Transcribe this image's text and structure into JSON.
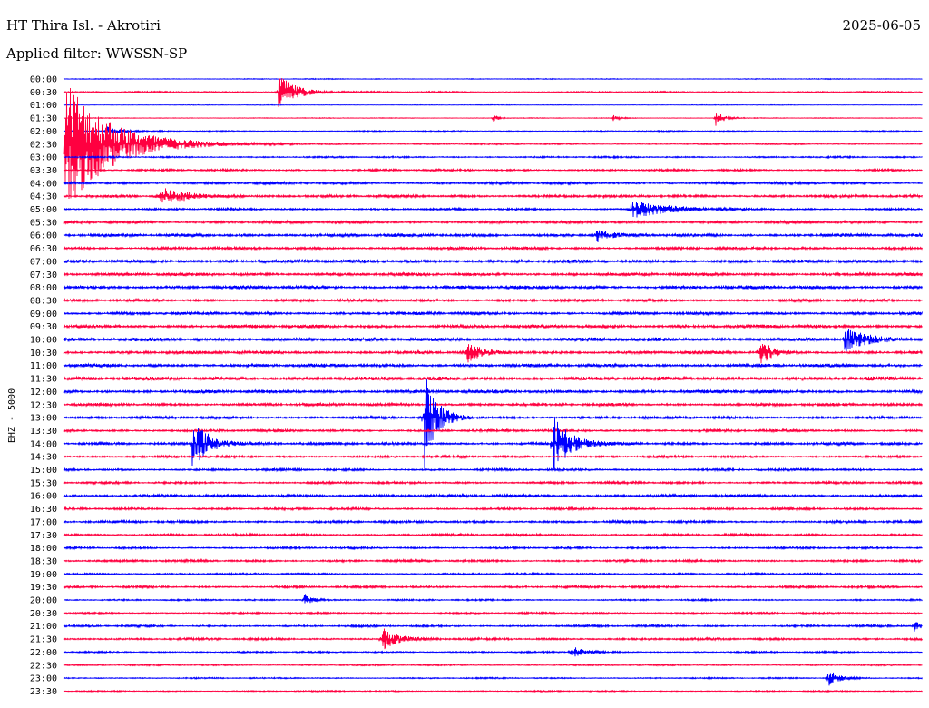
{
  "header": {
    "station": "HT Thira Isl. - Akrotiri",
    "date": "2025-06-05",
    "filter": "Applied filter: WWSSN-SP"
  },
  "chart_data": {
    "type": "line",
    "title": "HT Thira Isl. - Akrotiri",
    "ylabel": "EHZ - 5000",
    "colors": [
      "#0000ff",
      "#ff0040"
    ],
    "row_labels": [
      "00:00",
      "00:30",
      "01:00",
      "01:30",
      "02:00",
      "02:30",
      "03:00",
      "03:30",
      "04:00",
      "04:30",
      "05:00",
      "05:30",
      "06:00",
      "06:30",
      "07:00",
      "07:30",
      "08:00",
      "08:30",
      "09:00",
      "09:30",
      "10:00",
      "10:30",
      "11:00",
      "11:30",
      "12:00",
      "12:30",
      "13:00",
      "13:30",
      "14:00",
      "14:30",
      "15:00",
      "15:30",
      "16:00",
      "16:30",
      "17:00",
      "17:30",
      "18:00",
      "18:30",
      "19:00",
      "19:30",
      "20:00",
      "20:30",
      "21:00",
      "21:30",
      "22:00",
      "22:30",
      "23:00",
      "23:30"
    ],
    "noise": [
      0.35,
      0.55,
      0.25,
      0.3,
      0.45,
      0.55,
      0.7,
      0.9,
      1.1,
      1.2,
      0.9,
      1.3,
      1.4,
      1.2,
      1.5,
      1.4,
      1.5,
      1.2,
      1.3,
      1.5,
      1.7,
      1.4,
      1.5,
      1.7,
      1.5,
      1.3,
      1.2,
      1.1,
      1.2,
      1.0,
      1.0,
      1.0,
      1.3,
      1.0,
      1.1,
      1.0,
      0.9,
      1.0,
      0.8,
      1.0,
      0.7,
      0.7,
      0.9,
      1.0,
      0.7,
      0.6,
      0.6,
      0.55
    ],
    "events": [
      {
        "row": 5,
        "t": 0.002,
        "amp": 75,
        "dur": 0.08
      },
      {
        "row": 1,
        "t": 0.25,
        "amp": 20,
        "dur": 0.03
      },
      {
        "row": 3,
        "t": 0.76,
        "amp": 9,
        "dur": 0.015
      },
      {
        "row": 3,
        "t": 0.5,
        "amp": 5,
        "dur": 0.01
      },
      {
        "row": 3,
        "t": 0.64,
        "amp": 4,
        "dur": 0.01
      },
      {
        "row": 4,
        "t": 0.05,
        "amp": 6,
        "dur": 0.02
      },
      {
        "row": 9,
        "t": 0.11,
        "amp": 10,
        "dur": 0.05
      },
      {
        "row": 10,
        "t": 0.66,
        "amp": 11,
        "dur": 0.06
      },
      {
        "row": 12,
        "t": 0.62,
        "amp": 8,
        "dur": 0.02
      },
      {
        "row": 20,
        "t": 0.91,
        "amp": 14,
        "dur": 0.03
      },
      {
        "row": 21,
        "t": 0.47,
        "amp": 13,
        "dur": 0.02
      },
      {
        "row": 21,
        "t": 0.81,
        "amp": 16,
        "dur": 0.02
      },
      {
        "row": 26,
        "t": 0.42,
        "amp": 60,
        "dur": 0.02
      },
      {
        "row": 28,
        "t": 0.15,
        "amp": 28,
        "dur": 0.03
      },
      {
        "row": 28,
        "t": 0.57,
        "amp": 32,
        "dur": 0.03
      },
      {
        "row": 40,
        "t": 0.28,
        "amp": 7,
        "dur": 0.015
      },
      {
        "row": 43,
        "t": 0.37,
        "amp": 14,
        "dur": 0.025
      },
      {
        "row": 42,
        "t": 0.99,
        "amp": 7,
        "dur": 0.01
      },
      {
        "row": 44,
        "t": 0.59,
        "amp": 8,
        "dur": 0.02
      },
      {
        "row": 46,
        "t": 0.89,
        "amp": 10,
        "dur": 0.02
      }
    ]
  }
}
